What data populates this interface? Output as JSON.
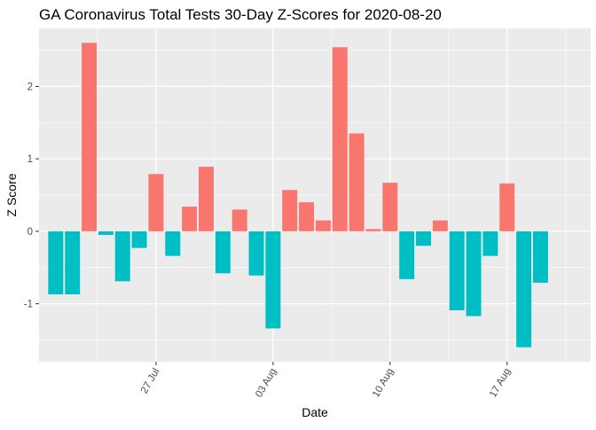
{
  "chart_data": {
    "type": "bar",
    "title": "GA Coronavirus Total Tests 30-Day Z-Scores for 2020-08-20",
    "xlabel": "Date",
    "ylabel": "Z Score",
    "x_ticks": [
      {
        "date": "2020-07-27",
        "label": "27 Jul"
      },
      {
        "date": "2020-08-03",
        "label": "03 Aug"
      },
      {
        "date": "2020-08-10",
        "label": "10 Aug"
      },
      {
        "date": "2020-08-17",
        "label": "17 Aug"
      }
    ],
    "y_ticks": [
      -1,
      0,
      1,
      2
    ],
    "xlim": [
      "2020-07-20",
      "2020-08-22"
    ],
    "ylim": [
      -1.8,
      2.8
    ],
    "grid": true,
    "legend": "none",
    "colors": {
      "positive": "#F8766D",
      "negative": "#00BFC4",
      "panel": "#EBEBEB",
      "grid": "#FFFFFF"
    },
    "x": [
      "2020-07-21",
      "2020-07-22",
      "2020-07-23",
      "2020-07-24",
      "2020-07-25",
      "2020-07-26",
      "2020-07-27",
      "2020-07-28",
      "2020-07-29",
      "2020-07-30",
      "2020-07-31",
      "2020-08-01",
      "2020-08-02",
      "2020-08-03",
      "2020-08-04",
      "2020-08-05",
      "2020-08-06",
      "2020-08-07",
      "2020-08-08",
      "2020-08-09",
      "2020-08-10",
      "2020-08-11",
      "2020-08-12",
      "2020-08-13",
      "2020-08-14",
      "2020-08-15",
      "2020-08-16",
      "2020-08-17",
      "2020-08-18",
      "2020-08-19",
      "2020-08-20"
    ],
    "values": [
      -0.87,
      -0.87,
      2.6,
      -0.05,
      -0.69,
      -0.23,
      0.79,
      -0.34,
      0.34,
      0.89,
      -0.58,
      0.3,
      -0.61,
      -1.34,
      0.57,
      0.4,
      0.15,
      2.54,
      1.35,
      0.03,
      0.67,
      -0.66,
      -0.2,
      0.15,
      -1.09,
      -1.17,
      -0.34,
      0.66,
      -1.6,
      -0.71,
      0.0
    ]
  }
}
